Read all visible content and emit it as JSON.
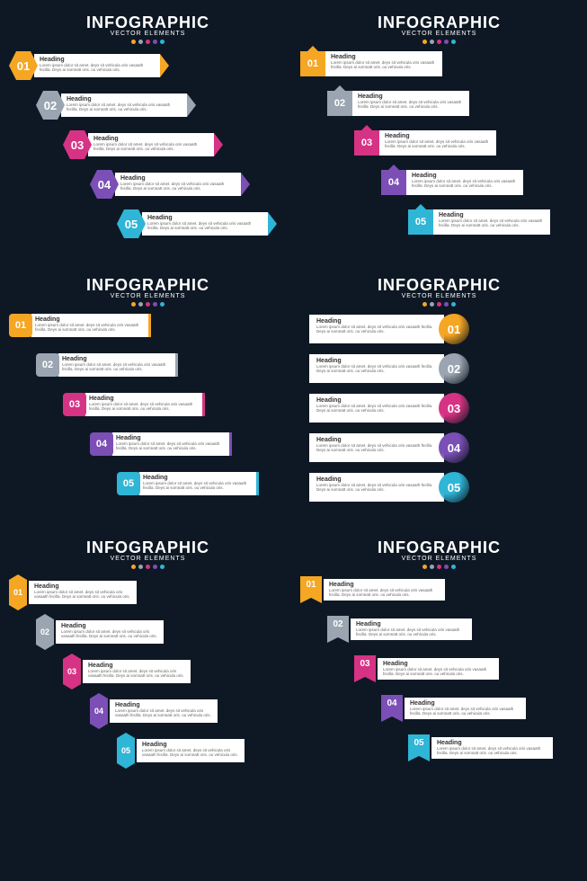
{
  "header": {
    "title": "INFOGRAPHIC",
    "subtitle": "VECTOR ELEMENTS"
  },
  "colors": [
    "#f5a623",
    "#9aa5b1",
    "#d63384",
    "#7b4fb5",
    "#2fb5d6"
  ],
  "dot_colors": [
    "#f5a623",
    "#9aa5b1",
    "#d63384",
    "#7b4fb5",
    "#2fb5d6"
  ],
  "heading": "Heading",
  "body": "Lorem ipsum dolor sit amet. deys sit vehicula oris vasaath fecilla. Deys ai somnatt oris. ou vehicula oris.",
  "offsets": [
    0,
    30,
    60,
    90,
    120
  ],
  "row_gap": 44,
  "panels": 6
}
